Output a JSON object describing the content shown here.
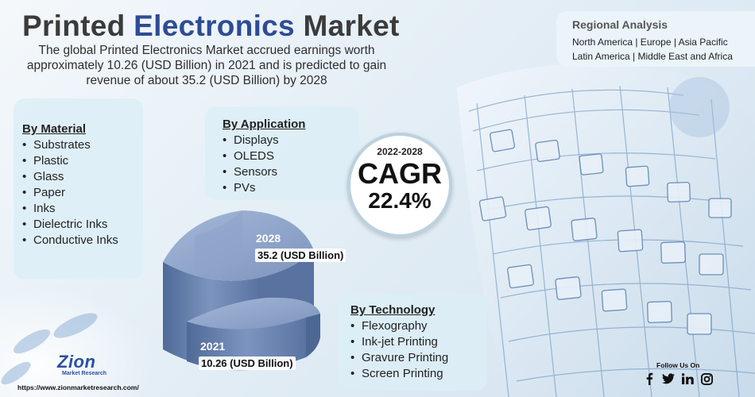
{
  "title": {
    "part1": "Printed",
    "part2": "Electronics",
    "part3": "Market"
  },
  "intro": {
    "line1": "The global Printed Electronics Market accrued earnings worth",
    "line2": "approximately 10.26 (USD Billion) in 2021 and is predicted to gain",
    "line3": "revenue of about 35.2 (USD Billion) by 2028"
  },
  "regional": {
    "title": "Regional Analysis",
    "line1": "North America | Europe | Asia Pacific",
    "line2": "Latin America | Middle East and Africa"
  },
  "by_material": {
    "title": "By Material",
    "items": [
      "Substrates",
      "Plastic",
      "Glass",
      "Paper",
      "Inks",
      "Dielectric Inks",
      "Conductive Inks"
    ]
  },
  "by_application": {
    "title": "By Application",
    "items": [
      "Displays",
      "OLEDS",
      "Sensors",
      "PVs"
    ]
  },
  "by_technology": {
    "title": "By Technology",
    "items": [
      "Flexography",
      "Ink-jet Printing",
      "Gravure Printing",
      "Screen Printing"
    ]
  },
  "cagr": {
    "years": "2022-2028",
    "label": "CAGR",
    "value": "22.4%"
  },
  "market_values": {
    "start_year": "2021",
    "start_value": "10.26 (USD Billion)",
    "end_year": "2028",
    "end_value": "35.2 (USD Billion)"
  },
  "bullet": "•",
  "footer": {
    "logo_text": "Zion",
    "logo_sub": "Market Research",
    "url": "https://www.zionmarketresearch.com/",
    "follow": "Follow Us On"
  },
  "icons": [
    "facebook-icon",
    "twitter-icon",
    "linkedin-icon",
    "instagram-icon"
  ],
  "colors": {
    "title_accent": "#2d4c96",
    "title_dark": "#3b3b3b",
    "cylinder": "#6f88b4"
  }
}
